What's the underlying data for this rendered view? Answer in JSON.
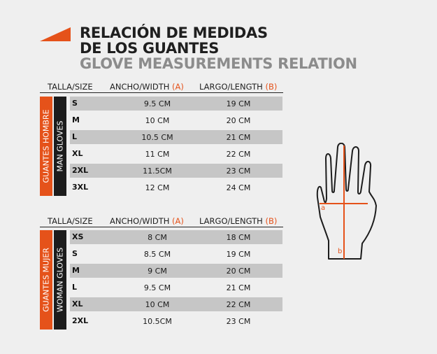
{
  "title": {
    "line1": "RELACIÓN DE MEDIDAS",
    "line2": "DE LOS GUANTES",
    "line3": "GLOVE MEASUREMENTS RELATION"
  },
  "headers": {
    "size": "TALLA/SIZE",
    "width": "ANCHO/WIDTH",
    "width_code": "(A)",
    "length": "LARGO/LENGTH",
    "length_code": "(B)"
  },
  "man": {
    "label_es": "GUANTES HOMBRE",
    "label_en": "MAN GLOVES",
    "rows": [
      {
        "size": "S",
        "width": "9.5 CM",
        "length": "19 CM"
      },
      {
        "size": "M",
        "width": "10 CM",
        "length": "20 CM"
      },
      {
        "size": "L",
        "width": "10.5 CM",
        "length": "21 CM"
      },
      {
        "size": "XL",
        "width": "11 CM",
        "length": "22 CM"
      },
      {
        "size": "2XL",
        "width": "11.5CM",
        "length": "23 CM"
      },
      {
        "size": "3XL",
        "width": "12 CM",
        "length": "24 CM"
      }
    ]
  },
  "woman": {
    "label_es": "GUANTES MUJER",
    "label_en": "WOMAN GLOVES",
    "rows": [
      {
        "size": "XS",
        "width": "8 CM",
        "length": "18 CM"
      },
      {
        "size": "S",
        "width": "8.5 CM",
        "length": "19 CM"
      },
      {
        "size": "M",
        "width": "9 CM",
        "length": "20 CM"
      },
      {
        "size": "L",
        "width": "9.5 CM",
        "length": "21 CM"
      },
      {
        "size": "XL",
        "width": "10 CM",
        "length": "22 CM"
      },
      {
        "size": "2XL",
        "width": "10.5CM",
        "length": "23 CM"
      }
    ]
  },
  "hand": {
    "label_a": "a",
    "label_b": "b"
  },
  "colors": {
    "accent": "#e5521a",
    "band": "#c6c6c6",
    "background": "#efefef"
  }
}
